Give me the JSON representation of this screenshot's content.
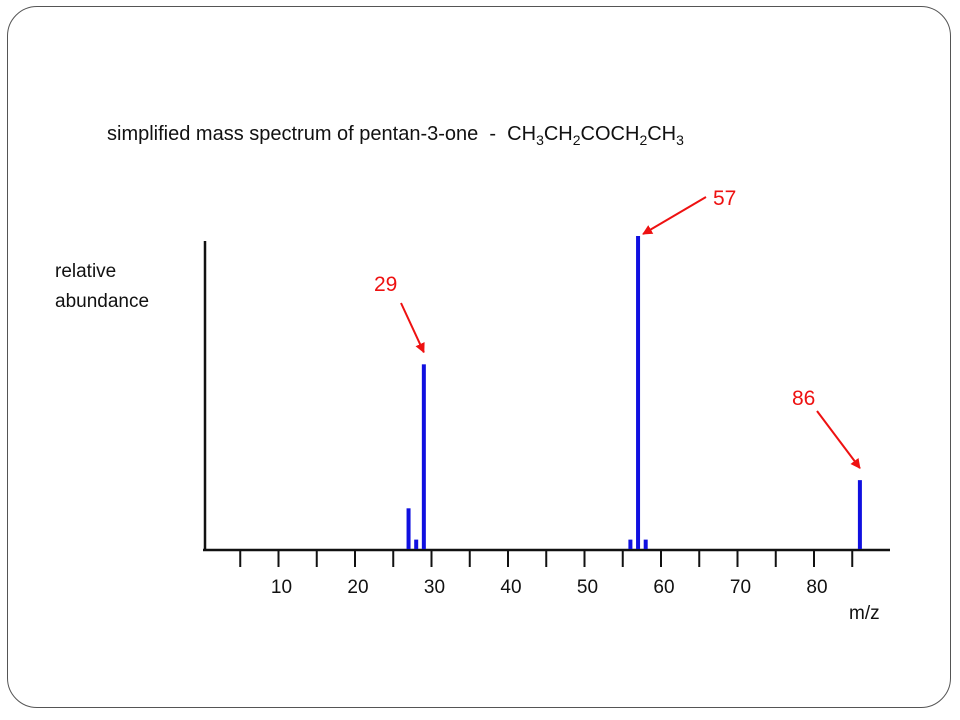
{
  "slide": {},
  "chart_data": {
    "type": "bar",
    "title_prefix": "simplified mass spectrum of pentan-3-one  -  ",
    "formula": [
      {
        "t": "CH",
        "sub": false
      },
      {
        "t": "3",
        "sub": true
      },
      {
        "t": "CH",
        "sub": false
      },
      {
        "t": "2",
        "sub": true
      },
      {
        "t": "COCH",
        "sub": false
      },
      {
        "t": "2",
        "sub": true
      },
      {
        "t": "CH",
        "sub": false
      },
      {
        "t": "3",
        "sub": true
      }
    ],
    "ylabel_lines": [
      "relative",
      "abundance"
    ],
    "xlabel": "m/z",
    "xlim": [
      0,
      90
    ],
    "ylim": [
      0,
      100
    ],
    "x_ticks": [
      5,
      10,
      15,
      20,
      25,
      30,
      35,
      40,
      45,
      50,
      55,
      60,
      65,
      70,
      75,
      80,
      85
    ],
    "x_tick_labels": [
      {
        "x": 10,
        "label": "10"
      },
      {
        "x": 20,
        "label": "20"
      },
      {
        "x": 30,
        "label": "30"
      },
      {
        "x": 40,
        "label": "40"
      },
      {
        "x": 50,
        "label": "50"
      },
      {
        "x": 60,
        "label": "60"
      },
      {
        "x": 70,
        "label": "70"
      },
      {
        "x": 80,
        "label": "80"
      }
    ],
    "bar_color": "#1010e0",
    "annotation_color": "#ee1111",
    "peaks": [
      {
        "mz": 27,
        "abundance": 13
      },
      {
        "mz": 28,
        "abundance": 3
      },
      {
        "mz": 29,
        "abundance": 59
      },
      {
        "mz": 56,
        "abundance": 3
      },
      {
        "mz": 57,
        "abundance": 100
      },
      {
        "mz": 58,
        "abundance": 3
      },
      {
        "mz": 86,
        "abundance": 22
      }
    ],
    "annotations": [
      {
        "label": "29",
        "mz": 29
      },
      {
        "label": "57",
        "mz": 57
      },
      {
        "label": "86",
        "mz": 86
      }
    ]
  }
}
